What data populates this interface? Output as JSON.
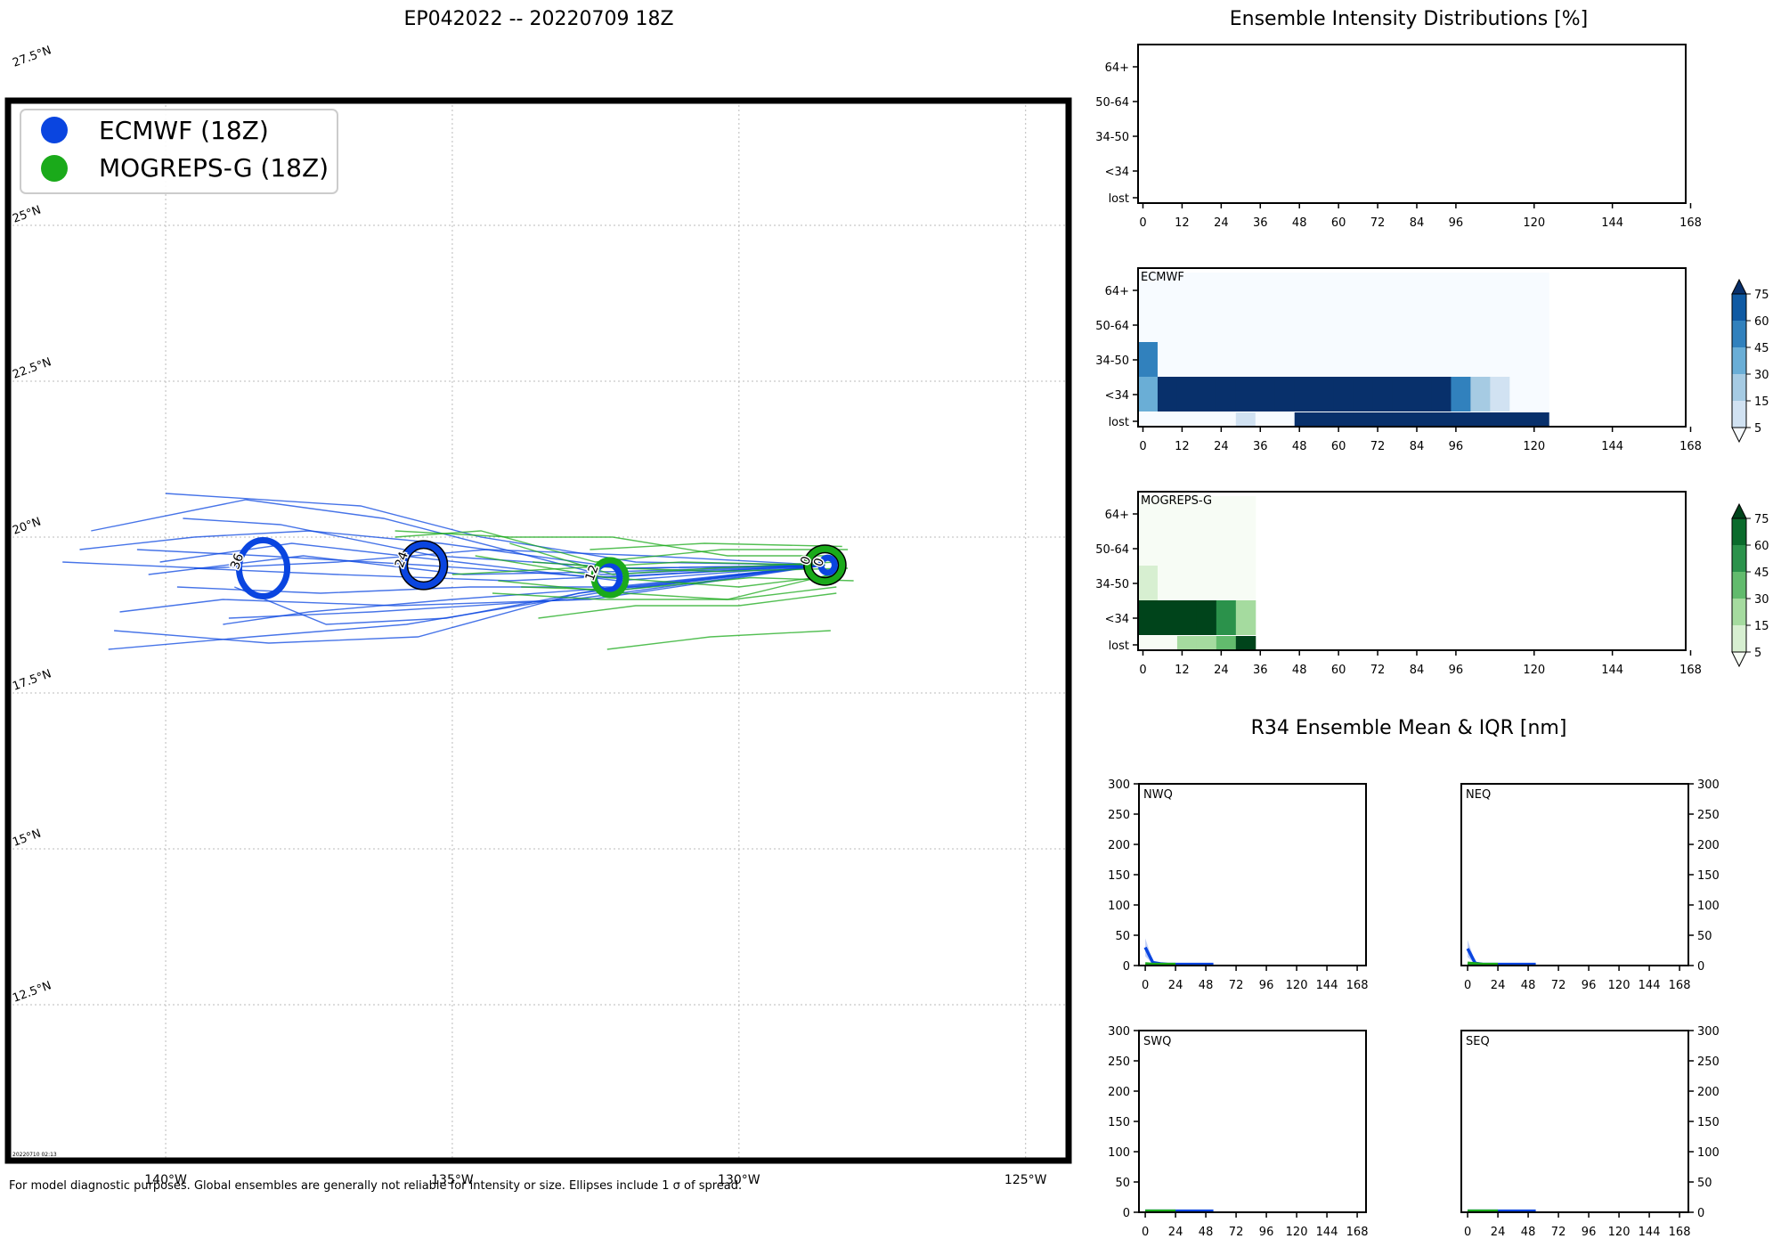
{
  "main_title": "EP042022 -- 20220709 18Z",
  "footer_note": "For model diagnostic purposes. Global ensembles are generally not reliable for intensity or size. Ellipses include 1 σ of spread.",
  "timestamp": "20220710 02:13",
  "colors": {
    "ecmwf": "#0a45e0",
    "mogreps": "#1aaa1a",
    "ecmwf_light": "#7fa0ee",
    "mogreps_light": "#7fd07f"
  },
  "chart_data": [
    {
      "type": "map",
      "title": "EP042022 -- 20220709 18Z",
      "xlim": [
        -142.75,
        -124.25
      ],
      "ylim": [
        10.0,
        27.0
      ],
      "lon_ticks": [
        -140,
        -135,
        -130,
        -125
      ],
      "lon_tick_labels": [
        "140°W",
        "135°W",
        "130°W",
        "125°W"
      ],
      "lat_ticks": [
        12.5,
        15,
        17.5,
        20,
        22.5,
        25,
        27.5
      ],
      "lat_tick_labels": [
        "12.5°N",
        "15°N",
        "17.5°N",
        "20°N",
        "22.5°N",
        "25°N",
        "27.5°N"
      ],
      "legend": {
        "position": "upper-left",
        "entries": [
          "ECMWF (18Z)",
          "MOGREPS-G (18Z)"
        ]
      },
      "ellipses": [
        {
          "model": "ecmwf",
          "lead": "36",
          "lon": -138.3,
          "lat": 19.5,
          "rx": 0.42,
          "ry": 0.45
        },
        {
          "model": "ecmwf",
          "lead": "24",
          "lon": -135.5,
          "lat": 19.55,
          "rx": 0.35,
          "ry": 0.33,
          "outline": "black"
        },
        {
          "model": "ecmwf",
          "lead": "12",
          "lon": -132.3,
          "lat": 19.35,
          "rx": 0.22,
          "ry": 0.22
        },
        {
          "model": "mogreps",
          "lead": "12",
          "lon": -132.25,
          "lat": 19.35,
          "rx": 0.28,
          "ry": 0.28
        },
        {
          "model": "mogreps",
          "lead": "0",
          "lon": -128.5,
          "lat": 19.55,
          "rx": 0.3,
          "ry": 0.26,
          "outline": "black"
        },
        {
          "model": "ecmwf",
          "lead": "0",
          "lon": -128.45,
          "lat": 19.55,
          "rx": 0.12,
          "ry": 0.12
        }
      ],
      "ecmwf_tracks": [
        [
          [
            -128.5,
            19.55
          ],
          [
            -132.3,
            19.35
          ],
          [
            -135.5,
            19.55
          ],
          [
            -138.3,
            19.7
          ],
          [
            -140.5,
            19.8
          ]
        ],
        [
          [
            -128.5,
            19.55
          ],
          [
            -132.0,
            19.2
          ],
          [
            -135.0,
            19.0
          ],
          [
            -137.5,
            18.8
          ],
          [
            -139.0,
            18.6
          ]
        ],
        [
          [
            -128.5,
            19.55
          ],
          [
            -131.8,
            19.6
          ],
          [
            -134.5,
            20.0
          ],
          [
            -136.6,
            20.5
          ],
          [
            -140.0,
            20.7
          ]
        ],
        [
          [
            -128.5,
            19.55
          ],
          [
            -132.5,
            19.1
          ],
          [
            -135.8,
            18.6
          ],
          [
            -138.5,
            18.4
          ],
          [
            -141.0,
            18.2
          ]
        ],
        [
          [
            -128.5,
            19.55
          ],
          [
            -132.0,
            19.5
          ],
          [
            -135.2,
            19.9
          ],
          [
            -137.5,
            20.1
          ],
          [
            -139.5,
            20.0
          ],
          [
            -141.5,
            19.8
          ]
        ],
        [
          [
            -128.5,
            19.55
          ],
          [
            -131.5,
            19.4
          ],
          [
            -134.0,
            19.3
          ],
          [
            -137.0,
            19.4
          ],
          [
            -139.5,
            19.5
          ]
        ],
        [
          [
            -128.5,
            19.55
          ],
          [
            -132.6,
            19.0
          ],
          [
            -136.0,
            18.9
          ],
          [
            -139.0,
            19.0
          ],
          [
            -140.8,
            18.8
          ]
        ],
        [
          [
            -128.5,
            19.55
          ],
          [
            -131.9,
            19.5
          ],
          [
            -135.3,
            19.7
          ],
          [
            -138.0,
            20.2
          ],
          [
            -139.7,
            20.3
          ]
        ],
        [
          [
            -128.5,
            19.55
          ],
          [
            -132.8,
            19.1
          ],
          [
            -135.6,
            18.4
          ],
          [
            -138.2,
            18.3
          ],
          [
            -140.9,
            18.5
          ]
        ],
        [
          [
            -128.5,
            19.55
          ],
          [
            -132.1,
            19.3
          ],
          [
            -134.9,
            19.6
          ],
          [
            -137.8,
            19.9
          ],
          [
            -140.1,
            19.6
          ]
        ],
        [
          [
            -128.5,
            19.55
          ],
          [
            -131.7,
            19.2
          ],
          [
            -134.7,
            19.2
          ],
          [
            -137.3,
            19.1
          ],
          [
            -139.8,
            19.2
          ]
        ],
        [
          [
            -128.5,
            19.55
          ],
          [
            -132.4,
            19.4
          ],
          [
            -136.2,
            20.3
          ],
          [
            -138.6,
            20.6
          ],
          [
            -141.3,
            20.1
          ]
        ],
        [
          [
            -128.5,
            19.55
          ],
          [
            -132.9,
            19.0
          ],
          [
            -136.4,
            18.8
          ],
          [
            -138.9,
            18.7
          ]
        ],
        [
          [
            -128.5,
            19.55
          ],
          [
            -131.6,
            19.7
          ],
          [
            -134.4,
            19.8
          ],
          [
            -137.0,
            19.6
          ],
          [
            -139.3,
            19.5
          ],
          [
            -141.8,
            19.6
          ]
        ],
        [
          [
            -128.5,
            19.55
          ],
          [
            -132.2,
            19.2
          ],
          [
            -135.1,
            18.7
          ],
          [
            -137.2,
            18.6
          ],
          [
            -138.8,
            19.2
          ]
        ],
        [
          [
            -128.5,
            19.55
          ],
          [
            -132.0,
            19.45
          ],
          [
            -134.8,
            19.4
          ],
          [
            -137.6,
            19.7
          ],
          [
            -140.3,
            19.4
          ]
        ]
      ],
      "mogreps_tracks": [
        [
          [
            -128.2,
            19.4
          ],
          [
            -130.0,
            19.2
          ],
          [
            -132.3,
            19.35
          ],
          [
            -134.6,
            19.7
          ]
        ],
        [
          [
            -128.3,
            19.6
          ],
          [
            -130.5,
            19.5
          ],
          [
            -132.2,
            19.4
          ],
          [
            -134.0,
            19.9
          ]
        ],
        [
          [
            -128.1,
            19.8
          ],
          [
            -130.3,
            19.8
          ],
          [
            -132.5,
            19.6
          ],
          [
            -134.5,
            20.1
          ],
          [
            -136.0,
            20.0
          ]
        ],
        [
          [
            -128.4,
            19.4
          ],
          [
            -130.2,
            19.0
          ],
          [
            -132.0,
            19.1
          ],
          [
            -134.2,
            19.3
          ]
        ],
        [
          [
            -128.0,
            19.3
          ],
          [
            -129.8,
            19.35
          ],
          [
            -132.1,
            19.15
          ],
          [
            -133.8,
            19.2
          ]
        ],
        [
          [
            -128.2,
            19.85
          ],
          [
            -130.6,
            19.9
          ],
          [
            -132.6,
            19.8
          ]
        ],
        [
          [
            -128.5,
            19.55
          ],
          [
            -131.0,
            19.6
          ],
          [
            -133.0,
            19.5
          ],
          [
            -135.0,
            19.4
          ]
        ],
        [
          [
            -128.4,
            18.5
          ],
          [
            -130.5,
            18.4
          ],
          [
            -132.3,
            18.2
          ]
        ],
        [
          [
            -128.3,
            19.2
          ],
          [
            -130.1,
            19.0
          ],
          [
            -132.4,
            19.0
          ],
          [
            -134.3,
            19.1
          ]
        ],
        [
          [
            -128.1,
            19.5
          ],
          [
            -130.4,
            19.45
          ],
          [
            -132.0,
            19.5
          ],
          [
            -133.6,
            19.6
          ]
        ],
        [
          [
            -128.5,
            19.7
          ],
          [
            -130.2,
            19.7
          ],
          [
            -132.2,
            20.0
          ],
          [
            -134.0,
            20.0
          ],
          [
            -136.0,
            20.1
          ]
        ],
        [
          [
            -128.3,
            19.1
          ],
          [
            -130.0,
            18.9
          ],
          [
            -131.8,
            18.9
          ],
          [
            -133.5,
            18.7
          ]
        ]
      ]
    },
    {
      "type": "heatmap",
      "title": "Ensemble Intensity Distributions [%]",
      "panel_label": "",
      "x_ticks": [
        0,
        12,
        24,
        36,
        48,
        60,
        72,
        84,
        96,
        120,
        144,
        168
      ],
      "y_categories": [
        "lost",
        "<34",
        "34-50",
        "50-64",
        "64+"
      ],
      "bin_hours": 6,
      "cells": []
    },
    {
      "type": "heatmap",
      "panel_label": "ECMWF",
      "x_ticks": [
        0,
        12,
        24,
        36,
        48,
        60,
        72,
        84,
        96,
        120,
        144,
        168
      ],
      "y_categories": [
        "lost",
        "<34",
        "34-50",
        "50-64",
        "64+"
      ],
      "bin_hours": 6,
      "colorbar_ticks": [
        5,
        15,
        30,
        45,
        60,
        75
      ],
      "cells": [
        [
          2,
          2,
          2,
          2,
          2,
          10,
          2,
          2,
          90,
          90,
          90,
          90,
          90,
          90,
          90,
          90,
          90,
          90,
          90,
          90,
          90
        ],
        [
          40,
          90,
          90,
          90,
          90,
          90,
          90,
          90,
          90,
          90,
          90,
          90,
          90,
          90,
          90,
          90,
          55,
          25,
          10,
          2,
          2
        ],
        [
          50,
          2,
          2,
          2,
          2,
          2,
          2,
          2,
          2,
          2,
          2,
          2,
          2,
          2,
          2,
          2,
          2,
          2,
          2,
          2,
          2
        ],
        [
          2,
          2,
          2,
          2,
          2,
          2,
          2,
          2,
          2,
          2,
          2,
          2,
          2,
          2,
          2,
          2,
          2,
          2,
          2,
          2,
          2
        ],
        [
          2,
          2,
          2,
          2,
          2,
          2,
          2,
          2,
          2,
          2,
          2,
          2,
          2,
          2,
          2,
          2,
          2,
          2,
          2,
          2,
          2
        ]
      ]
    },
    {
      "type": "heatmap",
      "panel_label": "MOGREPS-G",
      "x_ticks": [
        0,
        12,
        24,
        36,
        48,
        60,
        72,
        84,
        96,
        120,
        144,
        168
      ],
      "y_categories": [
        "lost",
        "<34",
        "34-50",
        "50-64",
        "64+"
      ],
      "bin_hours": 6,
      "colorbar_ticks": [
        5,
        15,
        30,
        45,
        60,
        75
      ],
      "cells": [
        [
          2,
          2,
          20,
          25,
          40,
          90
        ],
        [
          90,
          90,
          90,
          90,
          45,
          25
        ],
        [
          10,
          2,
          2,
          2,
          2,
          2
        ],
        [
          2,
          2,
          2,
          2,
          2,
          2
        ],
        [
          2,
          2,
          2,
          2,
          2,
          2
        ]
      ]
    },
    {
      "type": "line",
      "title": "R34 Ensemble Mean & IQR [nm]",
      "panels": [
        {
          "label": "NWQ",
          "ylim": [
            0,
            300
          ],
          "ecmwf": [
            30,
            5,
            3,
            2,
            2,
            2,
            2,
            2,
            2,
            2
          ],
          "mogreps": [
            3,
            2,
            2,
            2,
            2
          ]
        },
        {
          "label": "NEQ",
          "ylim": [
            0,
            300
          ],
          "ecmwf": [
            28,
            4,
            2,
            2,
            2,
            2,
            2,
            2,
            2,
            2
          ],
          "mogreps": [
            4,
            3,
            2,
            2,
            2
          ]
        },
        {
          "label": "SWQ",
          "ylim": [
            0,
            300
          ],
          "ecmwf": [
            2,
            2,
            2,
            2,
            2,
            2,
            2,
            2,
            2,
            2
          ],
          "mogreps": [
            2,
            2,
            2,
            2,
            2
          ]
        },
        {
          "label": "SEQ",
          "ylim": [
            0,
            300
          ],
          "ecmwf": [
            2,
            2,
            2,
            2,
            2,
            2,
            2,
            2,
            2,
            2
          ],
          "mogreps": [
            2,
            2,
            2,
            2,
            2
          ]
        }
      ],
      "x_hours": [
        0,
        6,
        12,
        18,
        24,
        30,
        36,
        42,
        48,
        54
      ],
      "x_ticks": [
        0,
        24,
        48,
        72,
        96,
        120,
        144,
        168
      ],
      "y_ticks": [
        0,
        50,
        100,
        150,
        200,
        250,
        300
      ]
    }
  ]
}
